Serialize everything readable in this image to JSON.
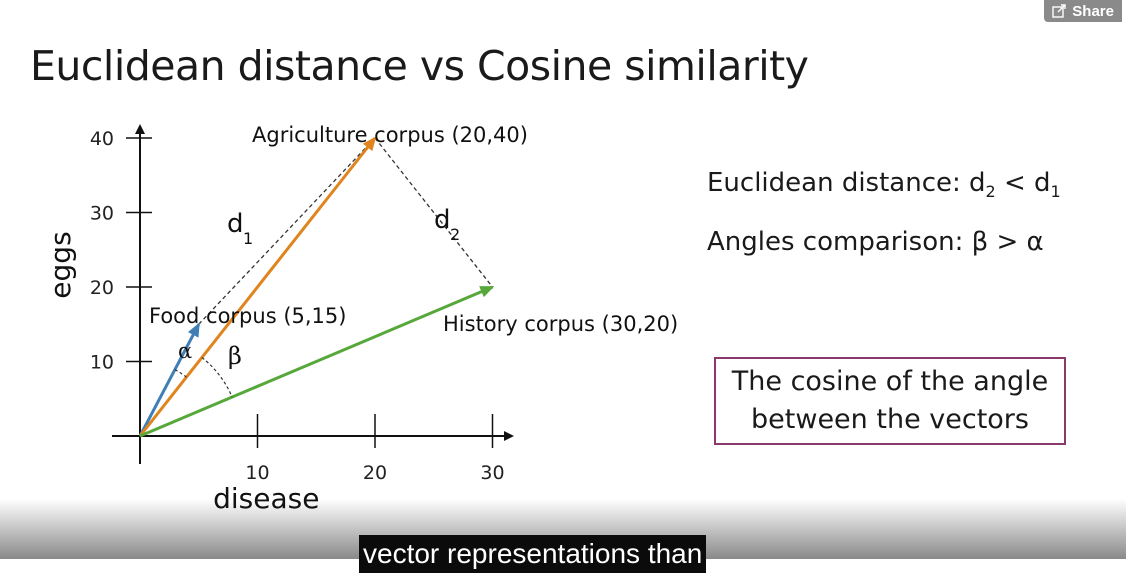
{
  "header": {
    "title": "Euclidean distance vs Cosine similarity",
    "share_label": "Share",
    "share_icon": "external-share-icon"
  },
  "chart_data": {
    "type": "scatter",
    "xlabel": "disease",
    "ylabel": "eggs",
    "xticks": [
      10,
      20,
      30
    ],
    "yticks": [
      10,
      20,
      30,
      40
    ],
    "xlim": [
      0,
      30
    ],
    "ylim": [
      0,
      40
    ],
    "points": [
      {
        "name": "Food corpus (5,15)",
        "x": 5,
        "y": 15,
        "color": "#3f7fb5"
      },
      {
        "name": "Agriculture corpus (20,40)",
        "x": 20,
        "y": 40,
        "color": "#e0841e"
      },
      {
        "name": "History corpus (30,20)",
        "x": 30,
        "y": 20,
        "color": "#56a83a"
      }
    ],
    "distance_labels": [
      {
        "main": "d",
        "sub": "1",
        "from": 0,
        "to": 1
      },
      {
        "main": "d",
        "sub": "2",
        "from": 1,
        "to": 2
      }
    ],
    "angle_labels": [
      "α",
      "β"
    ]
  },
  "side": {
    "euclid_prefix": "Euclidean distance: d",
    "euclid_sub2": "2",
    "euclid_mid": " < d",
    "euclid_sub1": "1",
    "angles_text": "Angles comparison: β > α",
    "callout_text": "The cosine of the angle between the vectors"
  },
  "caption": {
    "text": "vector representations than"
  }
}
